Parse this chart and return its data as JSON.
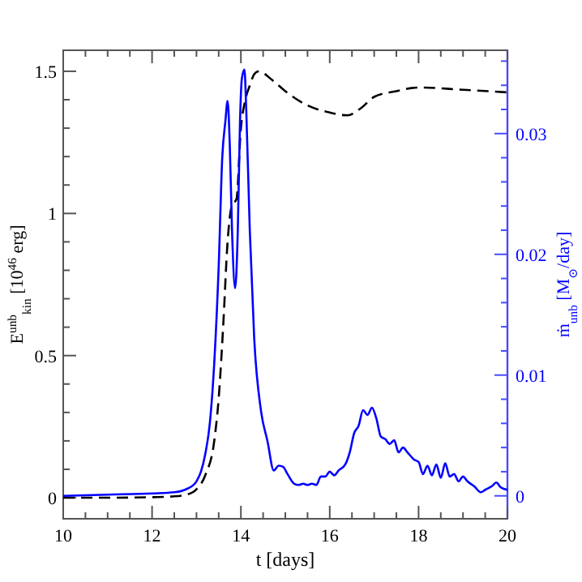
{
  "chart_data": {
    "type": "line",
    "xlabel": "t [days]",
    "ylabel": "E$^{unb}$$_{kin}$ [10$^{46}$ erg]",
    "y2label": "ṁ$_{unb}$ [M$_{⊙}$/day]",
    "xlim": [
      10,
      20
    ],
    "xticks": [
      10,
      {
        "value": 10.5,
        "label": null
      },
      {
        "value": 11,
        "label": null
      },
      {
        "value": 11.5,
        "label": null
      },
      12,
      {
        "value": 12.5,
        "label": null
      },
      {
        "value": 13,
        "label": null
      },
      {
        "value": 13.5,
        "label": null
      },
      14,
      {
        "value": 14.5,
        "label": null
      },
      {
        "value": 15,
        "label": null
      },
      {
        "value": 15.5,
        "label": null
      },
      16,
      {
        "value": 16.5,
        "label": null
      },
      {
        "value": 17,
        "label": null
      },
      {
        "value": 17.5,
        "label": null
      },
      18,
      {
        "value": 18.5,
        "label": null
      },
      {
        "value": 19,
        "label": null
      },
      {
        "value": 19.5,
        "label": null
      },
      20
    ],
    "ylim": [
      -0.074,
      1.574
    ],
    "yticks": [
      0,
      {
        "value": 0.1,
        "label": null
      },
      {
        "value": 0.2,
        "label": null
      },
      {
        "value": 0.3,
        "label": null
      },
      {
        "value": 0.4,
        "label": null
      },
      0.5,
      {
        "value": 0.6,
        "label": null
      },
      {
        "value": 0.7,
        "label": null
      },
      {
        "value": 0.8,
        "label": null
      },
      {
        "value": 0.9,
        "label": null
      },
      1,
      {
        "value": 1.1,
        "label": null
      },
      {
        "value": 1.2,
        "label": null
      },
      {
        "value": 1.3,
        "label": null
      },
      {
        "value": 1.4,
        "label": null
      },
      1.5
    ],
    "y2lim": [
      -0.0019,
      0.0369
    ],
    "y2ticks": [
      0,
      {
        "value": 0.002,
        "label": null
      },
      {
        "value": 0.004,
        "label": null
      },
      {
        "value": 0.006,
        "label": null
      },
      {
        "value": 0.008,
        "label": null
      },
      0.01,
      {
        "value": 0.012,
        "label": null
      },
      {
        "value": 0.014,
        "label": null
      },
      {
        "value": 0.016,
        "label": null
      },
      {
        "value": 0.018,
        "label": null
      },
      0.02,
      {
        "value": 0.022,
        "label": null
      },
      {
        "value": 0.024,
        "label": null
      },
      {
        "value": 0.026,
        "label": null
      },
      {
        "value": 0.028,
        "label": null
      },
      0.03,
      {
        "value": 0.032,
        "label": null
      },
      {
        "value": 0.034,
        "label": null
      },
      {
        "value": 0.036,
        "label": null
      }
    ],
    "grid": false,
    "series": [
      {
        "color": "#000000",
        "line_style": "dashed",
        "x": [
          10,
          11,
          12,
          12.5,
          12.8,
          13,
          13.2,
          13.4,
          13.5,
          13.6,
          13.7,
          13.8,
          13.9,
          14,
          14.1,
          14.2,
          14.3,
          14.4,
          14.7,
          15,
          15.5,
          16,
          16.4,
          16.7,
          17,
          17.5,
          18,
          19,
          20
        ],
        "values": [
          0,
          0,
          0.002,
          0.005,
          0.012,
          0.03,
          0.08,
          0.2,
          0.35,
          0.6,
          0.9,
          1.03,
          1.05,
          1.3,
          1.4,
          1.45,
          1.49,
          1.5,
          1.47,
          1.43,
          1.38,
          1.355,
          1.345,
          1.37,
          1.41,
          1.43,
          1.443,
          1.435,
          1.426
        ]
      },
      {
        "color": "#0000ff",
        "line_style": "solid",
        "axis": "y2",
        "x": [
          10,
          11,
          12,
          12.5,
          12.8,
          13,
          13.1,
          13.2,
          13.3,
          13.4,
          13.5,
          13.58,
          13.65,
          13.7,
          13.75,
          13.8,
          13.87,
          13.93,
          13.98,
          14.02,
          14.08,
          14.12,
          14.2,
          14.3,
          14.45,
          14.6,
          14.74,
          14.85,
          14.95,
          15.05,
          15.2,
          15.3,
          15.4,
          15.5,
          15.6,
          15.7,
          15.8,
          15.9,
          16,
          16.1,
          16.2,
          16.35,
          16.45,
          16.55,
          16.65,
          16.75,
          16.85,
          16.95,
          17.05,
          17.15,
          17.25,
          17.35,
          17.45,
          17.55,
          17.65,
          17.75,
          17.9,
          18,
          18.1,
          18.2,
          18.3,
          18.4,
          18.5,
          18.6,
          18.7,
          18.8,
          18.9,
          19,
          19.1,
          19.25,
          19.4,
          19.5,
          19.65,
          19.75,
          19.85,
          20
        ],
        "values": [
          0,
          0.0001,
          0.0002,
          0.0003,
          0.0006,
          0.0012,
          0.002,
          0.0035,
          0.006,
          0.011,
          0.019,
          0.028,
          0.031,
          0.0327,
          0.029,
          0.022,
          0.0172,
          0.022,
          0.031,
          0.0345,
          0.0353,
          0.032,
          0.022,
          0.013,
          0.0071,
          0.0045,
          0.0021,
          0.0025,
          0.0024,
          0.0018,
          0.001,
          0.0009,
          0.001,
          0.0009,
          0.001,
          0.0009,
          0.0016,
          0.0016,
          0.002,
          0.0017,
          0.0021,
          0.0026,
          0.0036,
          0.0052,
          0.0058,
          0.0071,
          0.0067,
          0.0073,
          0.0064,
          0.0049,
          0.0047,
          0.0043,
          0.0046,
          0.0036,
          0.004,
          0.0036,
          0.003,
          0.0028,
          0.0018,
          0.0025,
          0.0017,
          0.0026,
          0.0015,
          0.0027,
          0.0016,
          0.0018,
          0.0012,
          0.0016,
          0.0012,
          0.0008,
          0.0003,
          0.0005,
          0.0008,
          0.0011,
          0.0007,
          0.0005
        ]
      }
    ]
  }
}
